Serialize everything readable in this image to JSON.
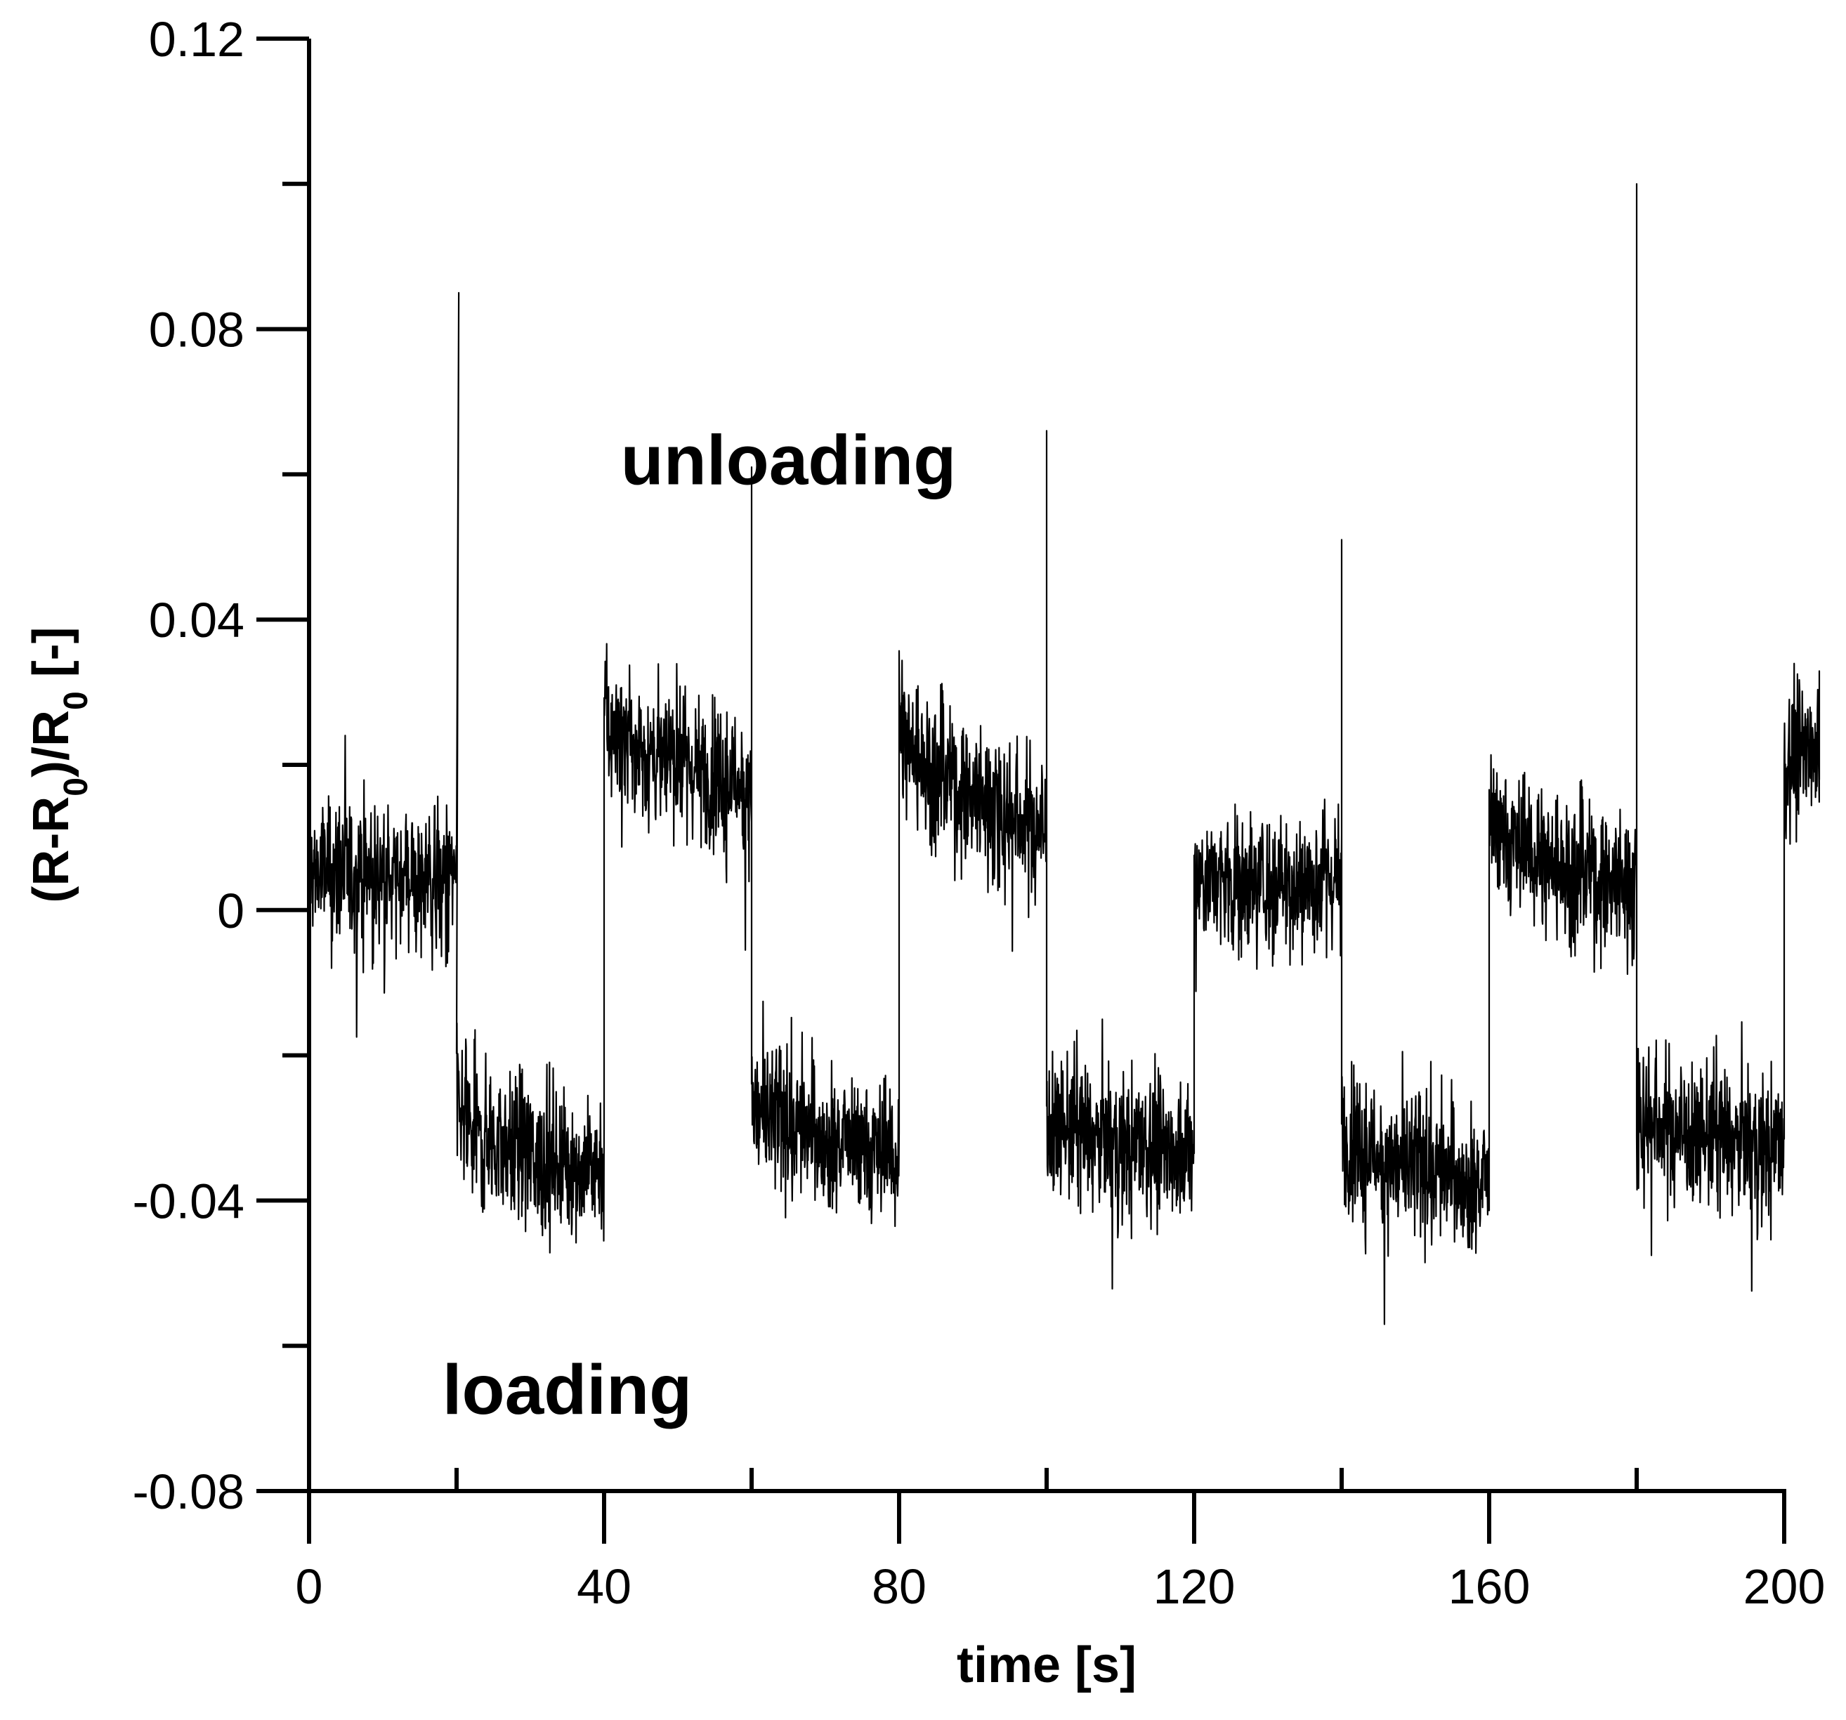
{
  "chart_data": {
    "type": "line",
    "title": "",
    "xlabel": "time [s]",
    "ylabel": "(R-R0)/R0 [-]",
    "ylabel_parts": {
      "a": "(R-R",
      "sub1": "0",
      "b": ")/R",
      "sub2": "0",
      "c": " [-]"
    },
    "xlim": [
      0,
      200
    ],
    "ylim": [
      -0.08,
      0.12
    ],
    "x_ticks": [
      0,
      40,
      80,
      120,
      160,
      200
    ],
    "x_tick_labels": [
      "0",
      "40",
      "80",
      "120",
      "160",
      "200"
    ],
    "x_minor_ticks": [
      20,
      60,
      100,
      140,
      180
    ],
    "y_ticks": [
      -0.08,
      -0.04,
      0,
      0.04,
      0.08,
      0.12
    ],
    "y_tick_labels": [
      "-0.08",
      "-0.04",
      "0",
      "0.04",
      "0.08",
      "0.12"
    ],
    "y_minor_ticks": [
      -0.06,
      -0.02,
      0.02,
      0.06,
      0.1
    ],
    "grid": false,
    "line_color": "#000000",
    "noise_amplitude": 0.0045,
    "segments": [
      {
        "t0": 0,
        "t1": 20,
        "start": 0.0055,
        "end": 0.004,
        "state": "unloading"
      },
      {
        "t0": 20,
        "t1": 40,
        "start": -0.028,
        "end": -0.036,
        "state": "loading"
      },
      {
        "t0": 40,
        "t1": 60,
        "start": 0.027,
        "end": 0.017,
        "state": "unloading"
      },
      {
        "t0": 60,
        "t1": 80,
        "start": -0.026,
        "end": -0.034,
        "state": "loading"
      },
      {
        "t0": 80,
        "t1": 100,
        "start": 0.027,
        "end": 0.011,
        "state": "unloading"
      },
      {
        "t0": 100,
        "t1": 120,
        "start": -0.028,
        "end": -0.034,
        "state": "loading"
      },
      {
        "t0": 120,
        "t1": 140,
        "start": 0.004,
        "end": 0.004,
        "state": "unloading"
      },
      {
        "t0": 140,
        "t1": 160,
        "start": -0.03,
        "end": -0.038,
        "state": "loading"
      },
      {
        "t0": 160,
        "t1": 180,
        "start": 0.013,
        "end": 0.003,
        "state": "unloading"
      },
      {
        "t0": 180,
        "t1": 200,
        "start": -0.027,
        "end": -0.033,
        "state": "loading"
      },
      {
        "t0": 200,
        "t1": 205,
        "start": 0.018,
        "end": 0.023,
        "state": "unloading"
      }
    ],
    "spikes": [
      {
        "t": 20.3,
        "peak": 0.085
      },
      {
        "t": 60.0,
        "peak": 0.061
      },
      {
        "t": 100.0,
        "peak": 0.066
      },
      {
        "t": 140.0,
        "peak": 0.051
      },
      {
        "t": 180.0,
        "peak": 0.1
      }
    ],
    "annotations": [
      {
        "text": "unloading",
        "x": 65,
        "y": 0.062
      },
      {
        "text": "loading",
        "x": 35,
        "y": -0.066
      }
    ]
  }
}
